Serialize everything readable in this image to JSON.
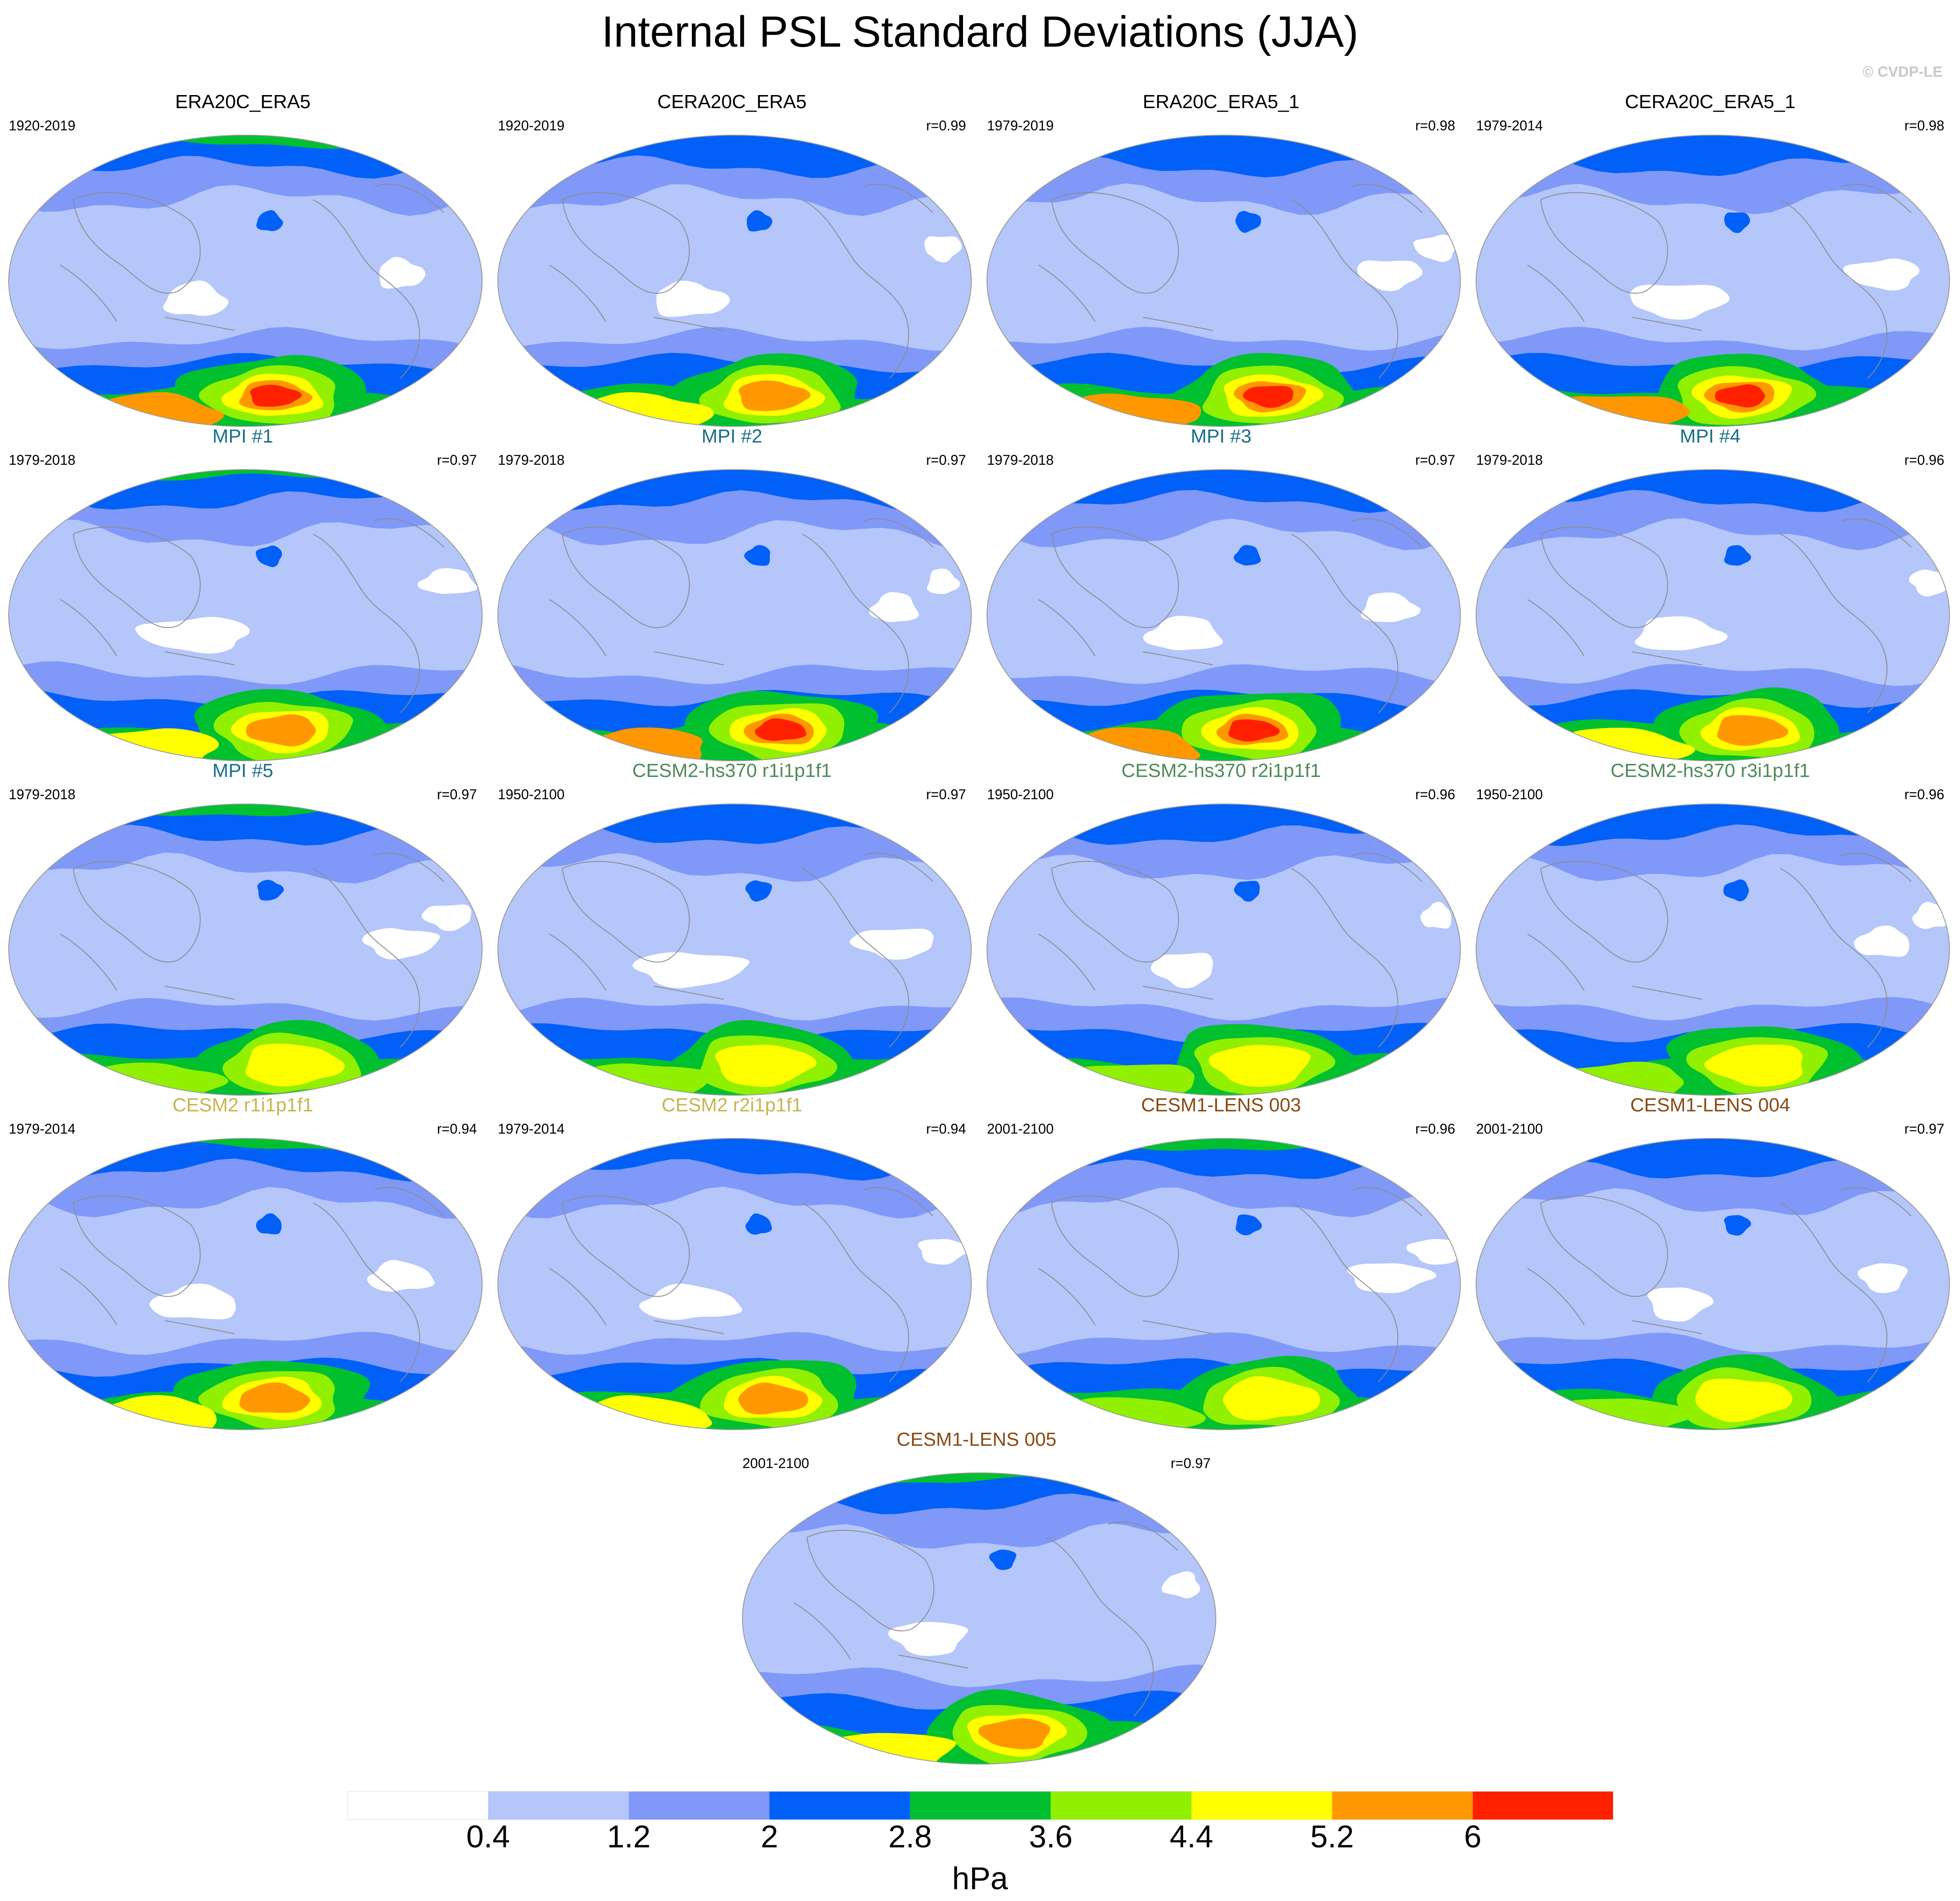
{
  "title": "Internal PSL Standard Deviations (JJA)",
  "credit": "© CVDP-LE",
  "colorbar": {
    "colors": [
      "#ffffff",
      "#b4c6fa",
      "#8098f8",
      "#0060f8",
      "#00c030",
      "#90f000",
      "#ffff00",
      "#ff9800",
      "#ff2000"
    ],
    "ticks": [
      "0.4",
      "1.2",
      "2",
      "2.8",
      "3.6",
      "4.4",
      "5.2",
      "6"
    ],
    "unit": "hPa"
  },
  "panels": [
    {
      "title": "ERA20C_ERA5",
      "period": "1920-2019",
      "r": "",
      "color": "#000000",
      "peak": 8,
      "variant": 0
    },
    {
      "title": "CERA20C_ERA5",
      "period": "1920-2019",
      "r": "r=0.99",
      "color": "#000000",
      "peak": 7,
      "variant": 1
    },
    {
      "title": "ERA20C_ERA5_1",
      "period": "1979-2019",
      "r": "r=0.98",
      "color": "#000000",
      "peak": 8,
      "variant": 2
    },
    {
      "title": "CERA20C_ERA5_1",
      "period": "1979-2014",
      "r": "r=0.98",
      "color": "#000000",
      "peak": 8,
      "variant": 3
    },
    {
      "title": "MPI #1",
      "period": "1979-2018",
      "r": "r=0.97",
      "color": "#1a6e8a",
      "peak": 7,
      "variant": 4
    },
    {
      "title": "MPI #2",
      "period": "1979-2018",
      "r": "r=0.97",
      "color": "#1a6e8a",
      "peak": 8,
      "variant": 5
    },
    {
      "title": "MPI #3",
      "period": "1979-2018",
      "r": "r=0.97",
      "color": "#1a6e8a",
      "peak": 8,
      "variant": 6
    },
    {
      "title": "MPI #4",
      "period": "1979-2018",
      "r": "r=0.96",
      "color": "#1a6e8a",
      "peak": 7,
      "variant": 7
    },
    {
      "title": "MPI #5",
      "period": "1979-2018",
      "r": "r=0.97",
      "color": "#1a6e8a",
      "peak": 6,
      "variant": 8
    },
    {
      "title": "CESM2-hs370 r1i1p1f1",
      "period": "1950-2100",
      "r": "r=0.97",
      "color": "#4e8a5a",
      "peak": 6,
      "variant": 9
    },
    {
      "title": "CESM2-hs370 r2i1p1f1",
      "period": "1950-2100",
      "r": "r=0.96",
      "color": "#4e8a5a",
      "peak": 6,
      "variant": 10
    },
    {
      "title": "CESM2-hs370 r3i1p1f1",
      "period": "1950-2100",
      "r": "r=0.96",
      "color": "#4e8a5a",
      "peak": 6,
      "variant": 11
    },
    {
      "title": "CESM2 r1i1p1f1",
      "period": "1979-2014",
      "r": "r=0.94",
      "color": "#c8b450",
      "peak": 7,
      "variant": 12
    },
    {
      "title": "CESM2 r2i1p1f1",
      "period": "1979-2014",
      "r": "r=0.94",
      "color": "#c8b450",
      "peak": 7,
      "variant": 13
    },
    {
      "title": "CESM1-LENS 003",
      "period": "2001-2100",
      "r": "r=0.96",
      "color": "#8a4a14",
      "peak": 6,
      "variant": 14
    },
    {
      "title": "CESM1-LENS 004",
      "period": "2001-2100",
      "r": "r=0.97",
      "color": "#8a4a14",
      "peak": 6,
      "variant": 15
    },
    {
      "title": "CESM1-LENS 005",
      "period": "2001-2100",
      "r": "r=0.97",
      "color": "#8a4a14",
      "peak": 7,
      "variant": 16
    }
  ]
}
